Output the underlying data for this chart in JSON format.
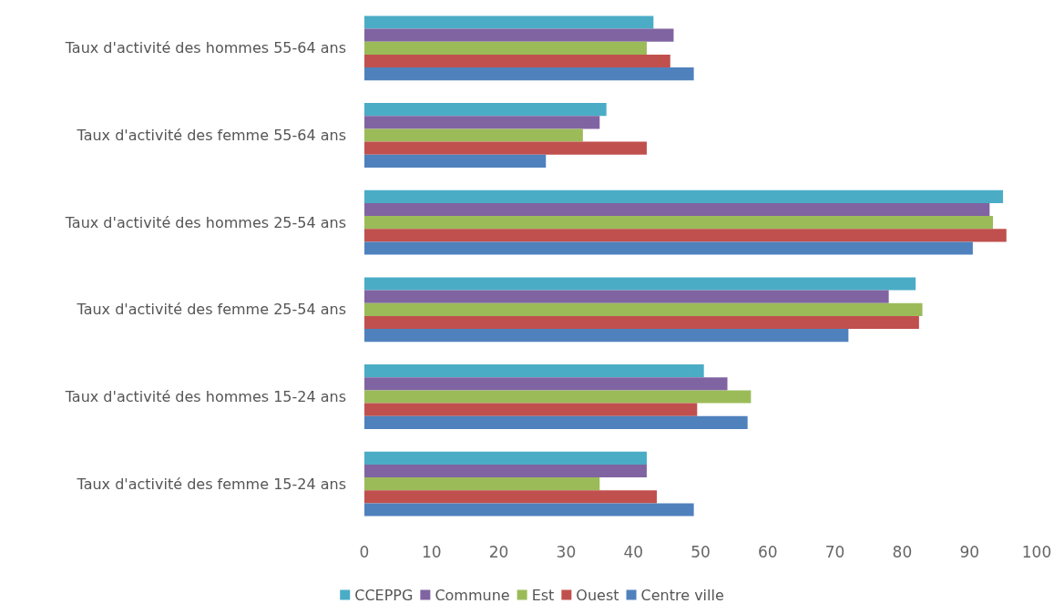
{
  "chart_data": {
    "type": "bar",
    "orientation": "horizontal",
    "categories": [
      "Taux d'activité des hommes 55-64 ans",
      "Taux d'activité des femme 55-64 ans",
      "Taux d'activité des hommes 25-54 ans",
      "Taux d'activité des femme 25-54 ans",
      "Taux d'activité des hommes 15-24 ans",
      "Taux d'activité des femme 15-24 ans"
    ],
    "series": [
      {
        "name": "CCEPPG",
        "color": "#4bacc6",
        "values": [
          43,
          36,
          95,
          82,
          50.5,
          42
        ]
      },
      {
        "name": "Commune",
        "color": "#8064a2",
        "values": [
          46,
          35,
          93,
          78,
          54,
          42
        ]
      },
      {
        "name": "Est",
        "color": "#9bbb59",
        "values": [
          42,
          32.5,
          93.5,
          83,
          57.5,
          35
        ]
      },
      {
        "name": "Ouest",
        "color": "#c0504d",
        "values": [
          45.5,
          42,
          95.5,
          82.5,
          49.5,
          43.5
        ]
      },
      {
        "name": "Centre ville",
        "color": "#4f81bd",
        "values": [
          49,
          27,
          90.5,
          72,
          57,
          49
        ]
      }
    ],
    "xlim": [
      0,
      100
    ],
    "xticks": [
      0,
      10,
      20,
      30,
      40,
      50,
      60,
      70,
      80,
      90,
      100
    ],
    "grid": false,
    "legend": "bottom"
  }
}
